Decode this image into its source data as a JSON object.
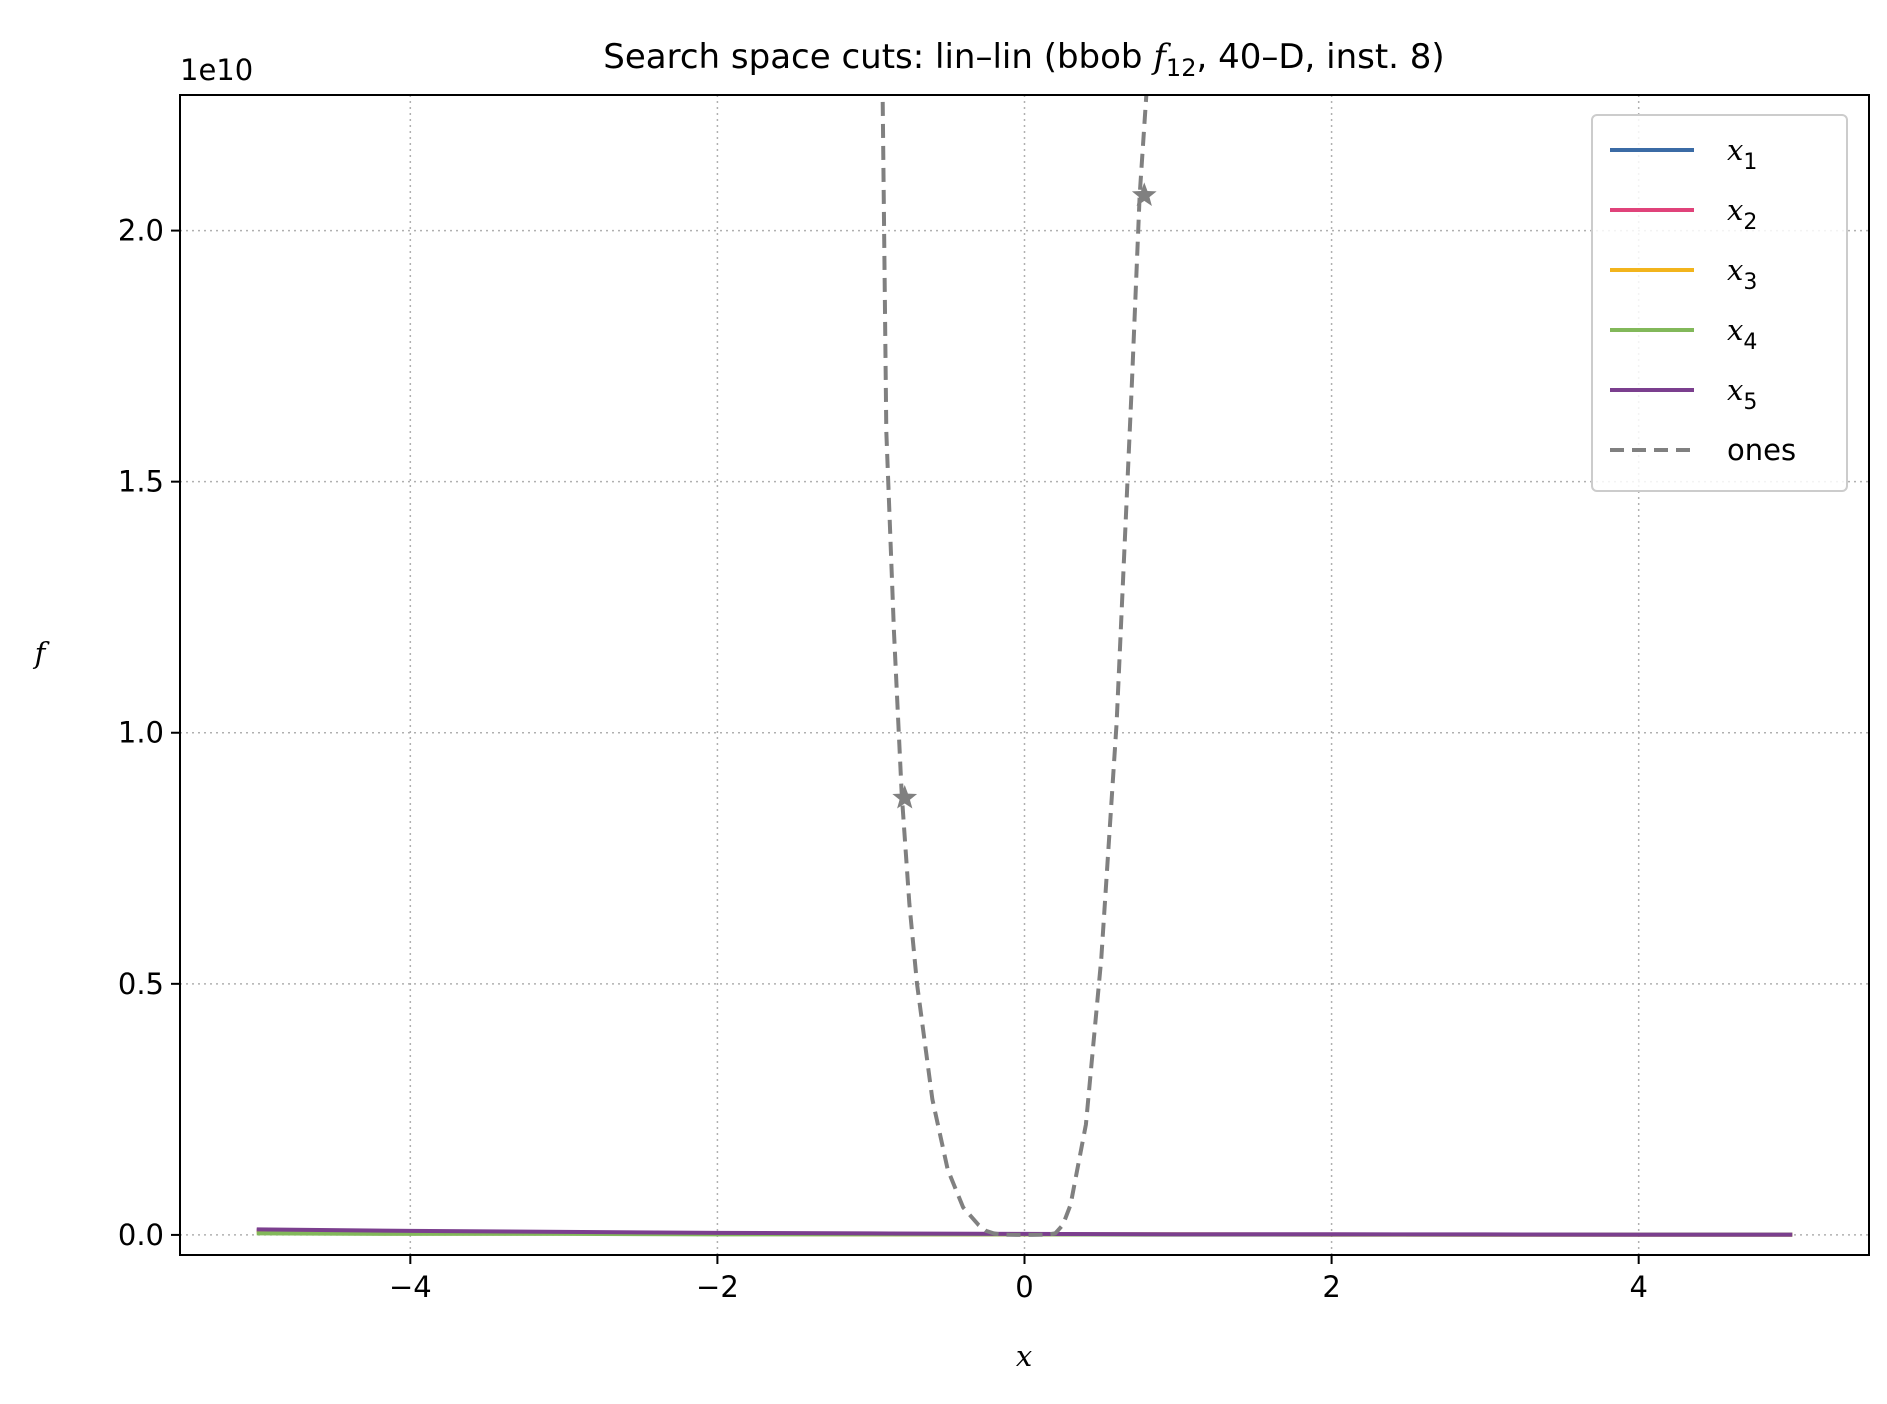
{
  "chart_data": {
    "type": "line",
    "title_parts": {
      "before": "Search space cuts: lin–lin (bbob ",
      "italic": "f",
      "sub": "12",
      "after": ", 40–D, inst. 8)"
    },
    "xlabel": "x",
    "ylabel": "f",
    "y_offset_label": "1e10",
    "xlim": [
      -5.5,
      5.5
    ],
    "ylim": [
      -0.04,
      2.27
    ],
    "y_scale_note": "y values in units of 1e10",
    "x_ticks": [
      -4,
      -2,
      0,
      2,
      4
    ],
    "x_tick_labels": [
      "−4",
      "−2",
      "0",
      "2",
      "4"
    ],
    "y_ticks": [
      0.0,
      0.5,
      1.0,
      1.5,
      2.0
    ],
    "y_tick_labels": [
      "0.0",
      "0.5",
      "1.0",
      "1.5",
      "2.0"
    ],
    "grid": true,
    "legend_position": "top-right",
    "series": [
      {
        "name": "x",
        "sub": "1",
        "color": "#3b6ba5",
        "style": "solid",
        "x": [
          -5,
          -4,
          -3,
          -2,
          -1,
          0,
          1,
          2,
          3,
          4,
          5
        ],
        "y": [
          0.009,
          0.006,
          0.004,
          0.003,
          0.002,
          0.001,
          0.001,
          0.001,
          0.0005,
          0.0005,
          0.0005
        ]
      },
      {
        "name": "x",
        "sub": "2",
        "color": "#e0437a",
        "style": "solid",
        "x": [
          -5,
          -4,
          -3,
          -2,
          -1,
          0,
          1,
          2,
          3,
          4,
          5
        ],
        "y": [
          0.009,
          0.006,
          0.004,
          0.003,
          0.002,
          0.001,
          0.001,
          0.001,
          0.0005,
          0.0005,
          0.0005
        ]
      },
      {
        "name": "x",
        "sub": "3",
        "color": "#f2b41c",
        "style": "solid",
        "x": [
          -5,
          -4,
          -3,
          -2,
          -1,
          0,
          1,
          2,
          3,
          4,
          5
        ],
        "y": [
          0.005,
          0.004,
          0.003,
          0.002,
          0.001,
          0.001,
          0.001,
          0.0005,
          0.0005,
          0.0005,
          0.0005
        ]
      },
      {
        "name": "x",
        "sub": "4",
        "color": "#82b85a",
        "style": "solid",
        "x": [
          -5,
          -4,
          -3,
          -2,
          -1,
          0,
          1,
          2,
          3,
          4,
          5
        ],
        "y": [
          0.003,
          0.002,
          0.002,
          0.001,
          0.001,
          0.001,
          0.0005,
          0.0005,
          0.0005,
          0.0005,
          0.0005
        ]
      },
      {
        "name": "x",
        "sub": "5",
        "color": "#7b3f8e",
        "style": "solid",
        "x": [
          -5,
          -4,
          -3,
          -2,
          -1,
          0,
          1,
          2,
          3,
          4,
          5
        ],
        "y": [
          0.011,
          0.008,
          0.006,
          0.004,
          0.003,
          0.002,
          0.001,
          0.001,
          0.001,
          0.0005,
          0.0005
        ]
      },
      {
        "name": "ones",
        "color": "#808080",
        "style": "dashed",
        "x": [
          -0.925,
          -0.9,
          -0.85,
          -0.8,
          -0.75,
          -0.7,
          -0.6,
          -0.5,
          -0.4,
          -0.3,
          -0.25,
          -0.2,
          -0.15,
          -0.1,
          -0.05,
          0.0,
          0.05,
          0.1,
          0.15,
          0.2,
          0.25,
          0.3,
          0.4,
          0.5,
          0.6,
          0.7,
          0.75,
          0.8
        ],
        "y": [
          2.3,
          1.6,
          1.2,
          0.88,
          0.66,
          0.5,
          0.27,
          0.13,
          0.055,
          0.02,
          0.008,
          0.003,
          0.0008,
          0.0002,
          0.0,
          0.0,
          0.0,
          0.0002,
          0.0008,
          0.003,
          0.02,
          0.06,
          0.22,
          0.55,
          1.02,
          1.7,
          2.07,
          2.3
        ]
      }
    ],
    "markers": [
      {
        "series": "ones",
        "symbol": "star",
        "x": -0.78,
        "y": 0.87
      },
      {
        "series": "ones",
        "symbol": "star",
        "x": 0.78,
        "y": 2.07
      }
    ]
  }
}
